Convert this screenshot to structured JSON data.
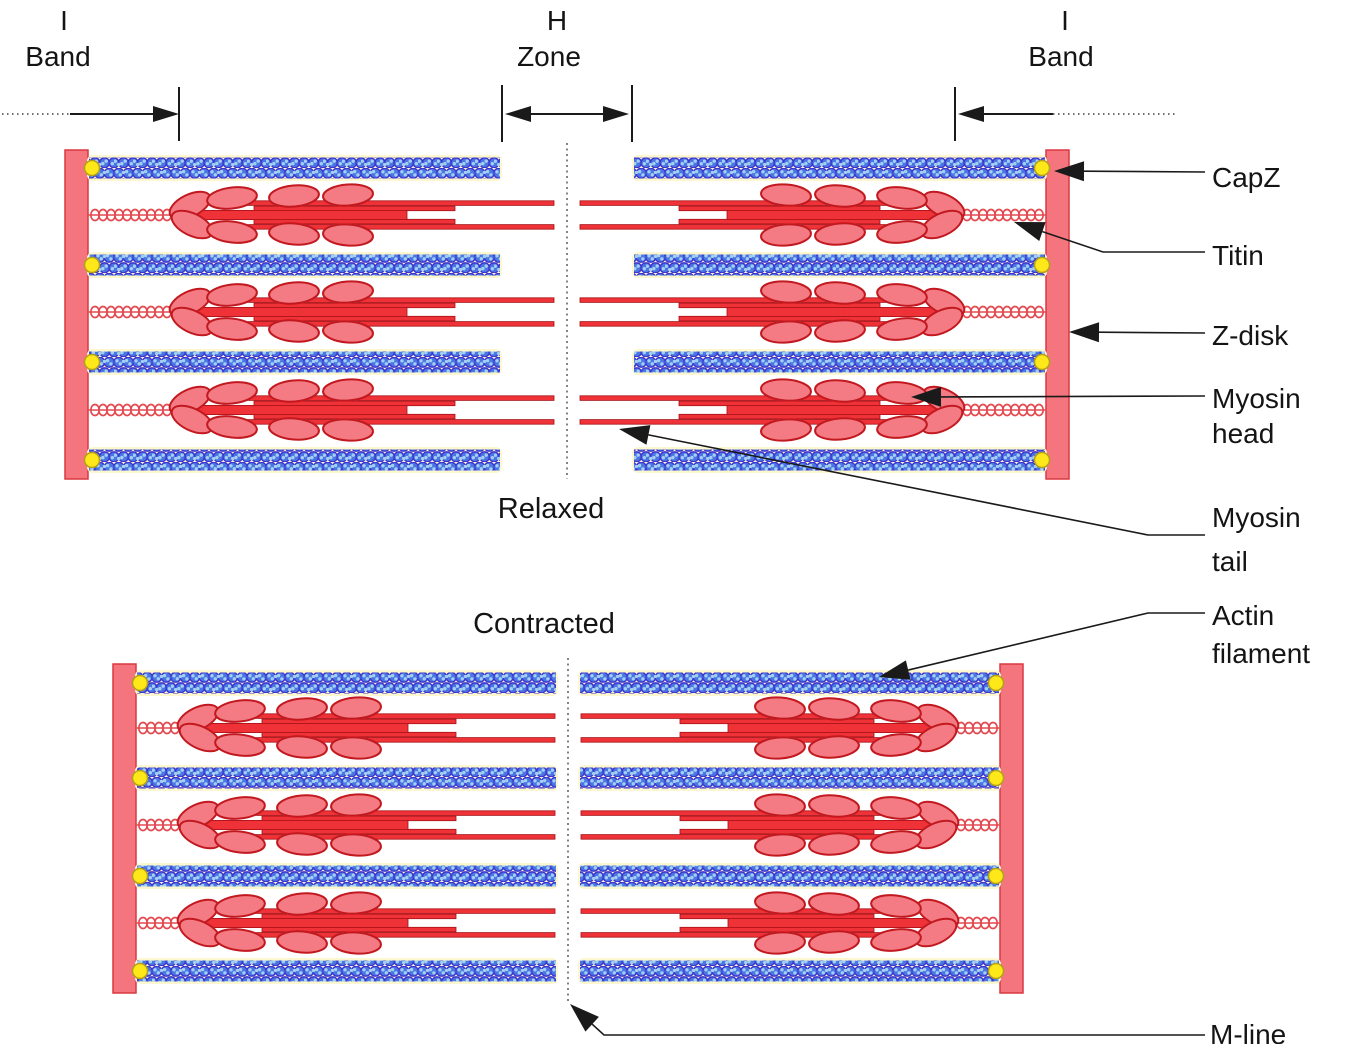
{
  "figure": {
    "kind": "sarcomere-structure-diagram"
  },
  "top_labels": {
    "i_band_left": {
      "line1": "I",
      "line2": "Band"
    },
    "h_zone": {
      "line1": "H",
      "line2": "Zone"
    },
    "i_band_right": {
      "line1": "I",
      "line2": "Band"
    }
  },
  "captions": {
    "relaxed": "Relaxed",
    "contracted": "Contracted"
  },
  "side_labels": {
    "capz": "CapZ",
    "titin": "Titin",
    "zdisk": "Z-disk",
    "myosin_head_line1": "Myosin",
    "myosin_head_line2": "head",
    "myosin_tail_line1": "Myosin",
    "myosin_tail_line2": "tail",
    "actin_line1": "Actin",
    "actin_line2": "filament",
    "mline": "M-line"
  },
  "palette": {
    "ink": "#1a1a1a",
    "myosin_line": "#ee3237",
    "myosin_line_edge": "#a51016",
    "myosin_head_fill": "#f47b83",
    "myosin_head_stroke": "#c2181f",
    "zdisk_fill": "#f4757d",
    "zdisk_stroke": "#d93840",
    "titin": "#e24a50",
    "actin_fill": "#4a76e2",
    "actin_stroke": "#3d33cf",
    "actin_speck": "#a5cff2",
    "actin_glow": "#fcf7cf",
    "capz_fill": "#ffe81a",
    "capz_stroke": "#b3a11a",
    "dash_line": "#333333"
  }
}
